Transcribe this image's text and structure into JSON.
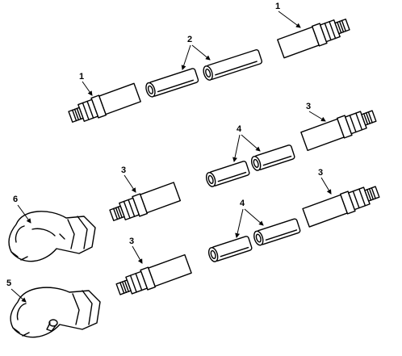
{
  "figure": {
    "callouts": {
      "c1a": "1",
      "c2": "2",
      "c1b": "1",
      "c3a": "3",
      "c4a": "4",
      "c3b": "3",
      "c3c": "3",
      "c6": "6",
      "c4b": "4",
      "c3d": "3",
      "c5": "5"
    }
  }
}
